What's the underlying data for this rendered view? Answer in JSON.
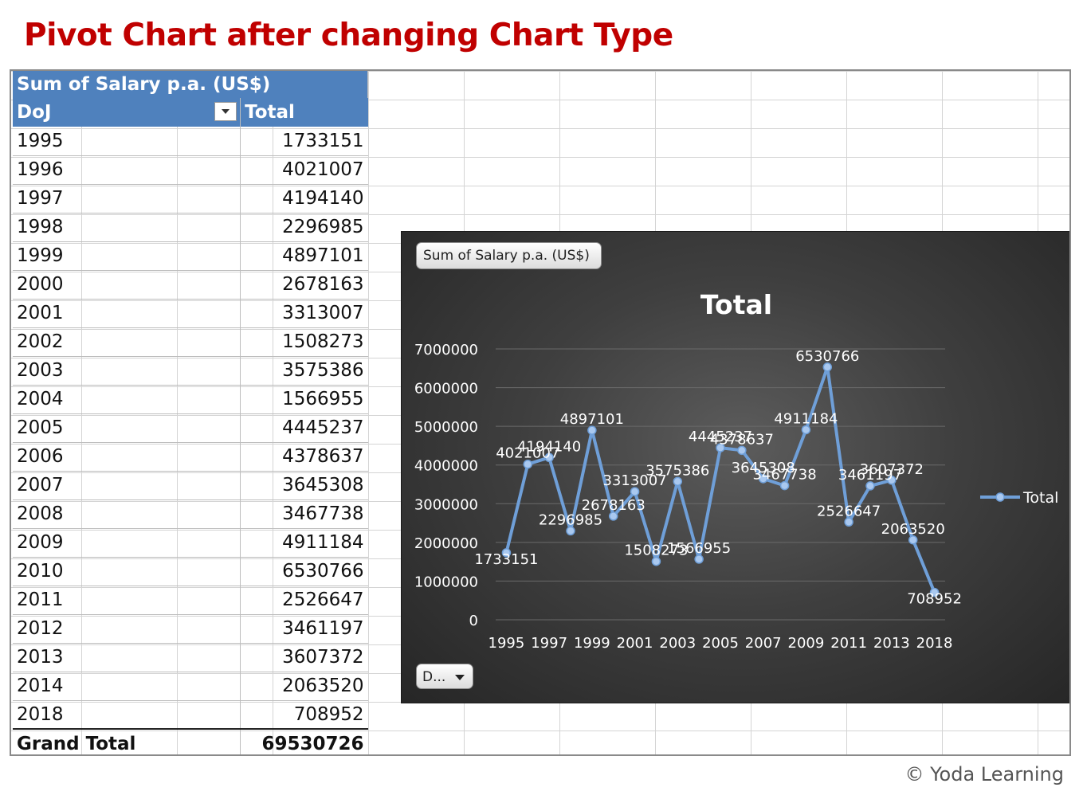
{
  "page": {
    "title": "Pivot Chart after changing Chart Type",
    "copyright": "© Yoda Learning"
  },
  "pivot": {
    "header_label": "Sum of Salary p.a. (US$)",
    "row_field": "DoJ",
    "value_column": "Total",
    "rows": [
      {
        "year": "1995",
        "total": "1733151"
      },
      {
        "year": "1996",
        "total": "4021007"
      },
      {
        "year": "1997",
        "total": "4194140"
      },
      {
        "year": "1998",
        "total": "2296985"
      },
      {
        "year": "1999",
        "total": "4897101"
      },
      {
        "year": "2000",
        "total": "2678163"
      },
      {
        "year": "2001",
        "total": "3313007"
      },
      {
        "year": "2002",
        "total": "1508273"
      },
      {
        "year": "2003",
        "total": "3575386"
      },
      {
        "year": "2004",
        "total": "1566955"
      },
      {
        "year": "2005",
        "total": "4445237"
      },
      {
        "year": "2006",
        "total": "4378637"
      },
      {
        "year": "2007",
        "total": "3645308"
      },
      {
        "year": "2008",
        "total": "3467738"
      },
      {
        "year": "2009",
        "total": "4911184"
      },
      {
        "year": "2010",
        "total": "6530766"
      },
      {
        "year": "2011",
        "total": "2526647"
      },
      {
        "year": "2012",
        "total": "3461197"
      },
      {
        "year": "2013",
        "total": "3607372"
      },
      {
        "year": "2014",
        "total": "2063520"
      },
      {
        "year": "2018",
        "total": "708952"
      }
    ],
    "grand_total_label": "Grand Total",
    "grand_total_value": "69530726"
  },
  "chart_controls": {
    "value_field_button": "Sum of Salary p.a. (US$)",
    "axis_field_button": "D..."
  },
  "chart_data": {
    "type": "line",
    "title": "Total",
    "categories": [
      "1995",
      "1996",
      "1997",
      "1998",
      "1999",
      "2000",
      "2001",
      "2002",
      "2003",
      "2004",
      "2005",
      "2006",
      "2007",
      "2008",
      "2009",
      "2010",
      "2011",
      "2012",
      "2013",
      "2014",
      "2018"
    ],
    "x_tick_labels": [
      "1995",
      "1997",
      "1999",
      "2001",
      "2003",
      "2005",
      "2007",
      "2009",
      "2011",
      "2013",
      "2018"
    ],
    "series": [
      {
        "name": "Total",
        "values": [
          1733151,
          4021007,
          4194140,
          2296985,
          4897101,
          2678163,
          3313007,
          1508273,
          3575386,
          1566955,
          4445237,
          4378637,
          3645308,
          3467738,
          4911184,
          6530766,
          2526647,
          3461197,
          3607372,
          2063520,
          708952
        ]
      }
    ],
    "data_labels": [
      "1733151",
      "4021007",
      "4194140",
      "2296985",
      "4897101",
      "2678163",
      "3313007",
      "1508273",
      "3575386",
      "1566955",
      "4445237",
      "4378637",
      "3645308",
      "3467738",
      "4911184",
      "6530766",
      "2526647",
      "3461197",
      "3607372",
      "2063520",
      "708952"
    ],
    "y_ticks": [
      "0",
      "1000000",
      "2000000",
      "3000000",
      "4000000",
      "5000000",
      "6000000",
      "7000000"
    ],
    "ylim": [
      0,
      7000000
    ],
    "grid": true,
    "legend": "right",
    "colors": {
      "line": "#6f9fd8",
      "background": "#3f3f3f",
      "text": "#ffffff",
      "grid": "#6a6a6a"
    }
  }
}
